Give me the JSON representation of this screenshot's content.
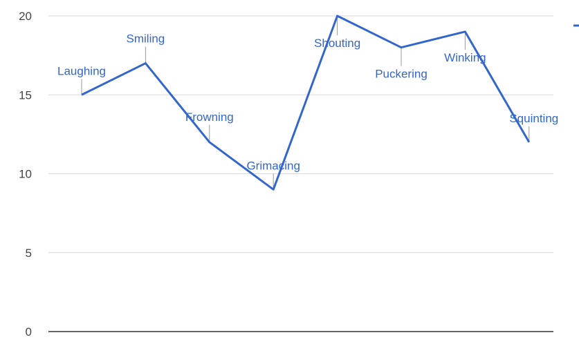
{
  "chart_data": {
    "type": "line",
    "title": "",
    "xlabel": "",
    "ylabel": "",
    "ylim": [
      0,
      20
    ],
    "y_ticks": [
      0,
      5,
      10,
      15,
      20
    ],
    "grid": true,
    "colors": {
      "series": "#3366cc",
      "grid": "#d9d9d9",
      "baseline": "#333333",
      "tick_text": "#444444"
    },
    "points": [
      {
        "label": "Laughing",
        "value": 15
      },
      {
        "label": "Smiling",
        "value": 17
      },
      {
        "label": "Frowning",
        "value": 12
      },
      {
        "label": "Grimacing",
        "value": 9
      },
      {
        "label": "Shouting",
        "value": 20
      },
      {
        "label": "Puckering",
        "value": 18
      },
      {
        "label": "Winking",
        "value": 19
      },
      {
        "label": "Squinting",
        "value": 12
      }
    ]
  }
}
